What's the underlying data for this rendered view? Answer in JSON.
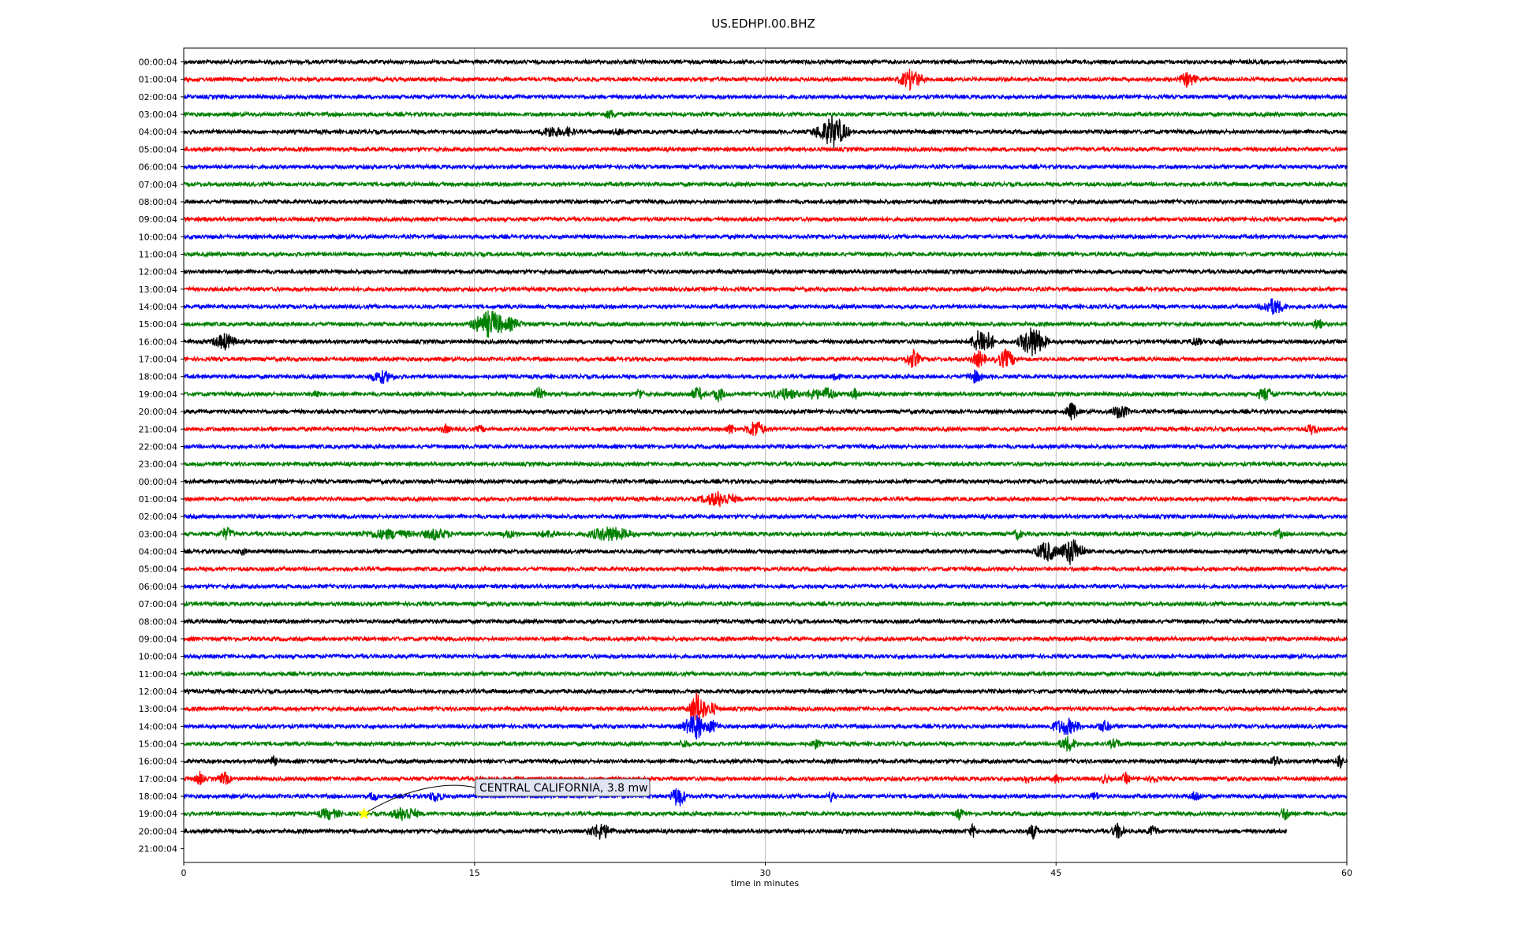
{
  "chart_data": {
    "type": "line",
    "title": "US.EDHPI.00.BHZ",
    "xlabel": "time in minutes",
    "xlim": [
      0,
      60
    ],
    "xticks": [
      0,
      15,
      30,
      45,
      60
    ],
    "grid_x": true,
    "row_colors": [
      "#000000",
      "#ff0000",
      "#0000ff",
      "#008000"
    ],
    "row_labels": [
      "00:00:04",
      "01:00:04",
      "02:00:04",
      "03:00:04",
      "04:00:04",
      "05:00:04",
      "06:00:04",
      "07:00:04",
      "08:00:04",
      "09:00:04",
      "10:00:04",
      "11:00:04",
      "12:00:04",
      "13:00:04",
      "14:00:04",
      "15:00:04",
      "16:00:04",
      "17:00:04",
      "18:00:04",
      "19:00:04",
      "20:00:04",
      "21:00:04",
      "22:00:04",
      "23:00:04",
      "00:00:04",
      "01:00:04",
      "02:00:04",
      "03:00:04",
      "04:00:04",
      "05:00:04",
      "06:00:04",
      "07:00:04",
      "08:00:04",
      "09:00:04",
      "10:00:04",
      "11:00:04",
      "12:00:04",
      "13:00:04",
      "14:00:04",
      "15:00:04",
      "16:00:04",
      "17:00:04",
      "18:00:04",
      "19:00:04",
      "20:00:04",
      "21:00:04"
    ],
    "trace_end_minutes": [
      60,
      60,
      60,
      60,
      60,
      60,
      60,
      60,
      60,
      60,
      60,
      60,
      60,
      60,
      60,
      60,
      60,
      60,
      60,
      60,
      60,
      60,
      60,
      60,
      60,
      60,
      60,
      60,
      60,
      60,
      60,
      60,
      60,
      60,
      60,
      60,
      60,
      60,
      60,
      60,
      60,
      60,
      60,
      60,
      56.9,
      0
    ],
    "bursts": [
      [
        1,
        37.5,
        0.8,
        1.0
      ],
      [
        1,
        51.8,
        0.6,
        0.7
      ],
      [
        3,
        22,
        0.4,
        0.4
      ],
      [
        4,
        19,
        0.8,
        0.5
      ],
      [
        4,
        19.8,
        0.5,
        0.4
      ],
      [
        4,
        22.5,
        0.5,
        0.3
      ],
      [
        4,
        33.5,
        1.0,
        1.6
      ],
      [
        4,
        33,
        0.8,
        0.8
      ],
      [
        14,
        56.2,
        0.8,
        0.8
      ],
      [
        15,
        15.8,
        1.2,
        1.4
      ],
      [
        15,
        16.8,
        0.8,
        0.6
      ],
      [
        15,
        15,
        0.3,
        0.6
      ],
      [
        15,
        58.5,
        0.3,
        0.6
      ],
      [
        16,
        2.1,
        0.8,
        0.8
      ],
      [
        16,
        41.2,
        0.8,
        1.4
      ],
      [
        16,
        43.8,
        0.9,
        1.6
      ],
      [
        16,
        52.2,
        0.4,
        0.4
      ],
      [
        16,
        53.5,
        0.3,
        0.3
      ],
      [
        17,
        37.6,
        0.5,
        0.9
      ],
      [
        17,
        41,
        0.5,
        0.8
      ],
      [
        17,
        42.4,
        0.7,
        0.9
      ],
      [
        18,
        10.2,
        0.8,
        0.6
      ],
      [
        18,
        33.6,
        0.3,
        0.5
      ],
      [
        18,
        40.8,
        0.5,
        0.6
      ],
      [
        19,
        18.3,
        0.5,
        0.5
      ],
      [
        19,
        26.5,
        0.5,
        0.6
      ],
      [
        19,
        27.6,
        0.4,
        0.7
      ],
      [
        19,
        31,
        1.0,
        0.5
      ],
      [
        19,
        32.5,
        0.6,
        0.5
      ],
      [
        19,
        33.2,
        0.5,
        0.7
      ],
      [
        19,
        34.6,
        0.3,
        0.5
      ],
      [
        19,
        55.8,
        0.6,
        0.6
      ],
      [
        19,
        23.5,
        0.3,
        0.5
      ],
      [
        19,
        6.8,
        0.3,
        0.4
      ],
      [
        20,
        45.8,
        0.4,
        0.9
      ],
      [
        20,
        48.3,
        0.6,
        0.7
      ],
      [
        21,
        13.5,
        0.3,
        0.4
      ],
      [
        21,
        15.3,
        0.3,
        0.3
      ],
      [
        21,
        28.2,
        0.3,
        0.5
      ],
      [
        21,
        29.5,
        0.6,
        0.9
      ],
      [
        21,
        58.2,
        0.4,
        0.5
      ],
      [
        25,
        27.6,
        1.2,
        0.7
      ],
      [
        27,
        2.2,
        0.5,
        0.6
      ],
      [
        27,
        10.5,
        2.0,
        0.4
      ],
      [
        27,
        13,
        1.0,
        0.5
      ],
      [
        27,
        16.8,
        0.6,
        0.3
      ],
      [
        27,
        18.8,
        0.8,
        0.3
      ],
      [
        27,
        22,
        1.5,
        0.7
      ],
      [
        27,
        43,
        0.3,
        0.5
      ],
      [
        27,
        56.5,
        0.3,
        0.4
      ],
      [
        28,
        3,
        0.3,
        0.3
      ],
      [
        28,
        44.5,
        0.8,
        1.0
      ],
      [
        28,
        45.8,
        0.8,
        1.4
      ],
      [
        37,
        26.5,
        0.6,
        1.8
      ],
      [
        37,
        26.8,
        0.3,
        0.8
      ],
      [
        37,
        27.2,
        0.5,
        0.6
      ],
      [
        38,
        26.3,
        0.8,
        1.0
      ],
      [
        38,
        26.5,
        0.3,
        1.8
      ],
      [
        38,
        27.2,
        0.5,
        0.6
      ],
      [
        38,
        45.5,
        1.0,
        0.8
      ],
      [
        38,
        47.5,
        0.5,
        0.5
      ],
      [
        39,
        25.8,
        0.3,
        0.4
      ],
      [
        39,
        32.6,
        0.3,
        0.5
      ],
      [
        39,
        45.6,
        0.6,
        0.7
      ],
      [
        39,
        48,
        0.4,
        0.4
      ],
      [
        40,
        4.6,
        0.3,
        0.4
      ],
      [
        40,
        56.3,
        0.3,
        0.7
      ],
      [
        40,
        59.6,
        0.3,
        0.7
      ],
      [
        41,
        0.8,
        0.3,
        0.7
      ],
      [
        41,
        2.1,
        0.4,
        0.6
      ],
      [
        41,
        43.5,
        0.3,
        0.4
      ],
      [
        41,
        45,
        0.3,
        0.4
      ],
      [
        41,
        47.5,
        0.3,
        0.4
      ],
      [
        41,
        48.6,
        0.3,
        0.5
      ],
      [
        41,
        50,
        0.3,
        0.4
      ],
      [
        42,
        9.8,
        0.3,
        0.5
      ],
      [
        42,
        13,
        0.5,
        0.5
      ],
      [
        42,
        25.5,
        0.5,
        1.1
      ],
      [
        42,
        33.4,
        0.3,
        0.5
      ],
      [
        42,
        47,
        0.3,
        0.4
      ],
      [
        42,
        52.2,
        0.4,
        0.5
      ],
      [
        43,
        7.5,
        0.8,
        0.5
      ],
      [
        43,
        11.4,
        0.9,
        0.7
      ],
      [
        43,
        40,
        0.3,
        0.5
      ],
      [
        43,
        56.8,
        0.4,
        0.6
      ],
      [
        44,
        21.5,
        0.8,
        0.8
      ],
      [
        44,
        40.7,
        0.3,
        0.6
      ],
      [
        44,
        43.8,
        0.4,
        0.7
      ],
      [
        44,
        48.2,
        0.4,
        0.8
      ],
      [
        44,
        50,
        0.4,
        0.5
      ]
    ],
    "annotation": {
      "text": "CENTRAL CALIFORNIA, 3.8 mw",
      "event_row": 43,
      "event_minute": 9.3,
      "marker_color": "#ffff00"
    }
  }
}
